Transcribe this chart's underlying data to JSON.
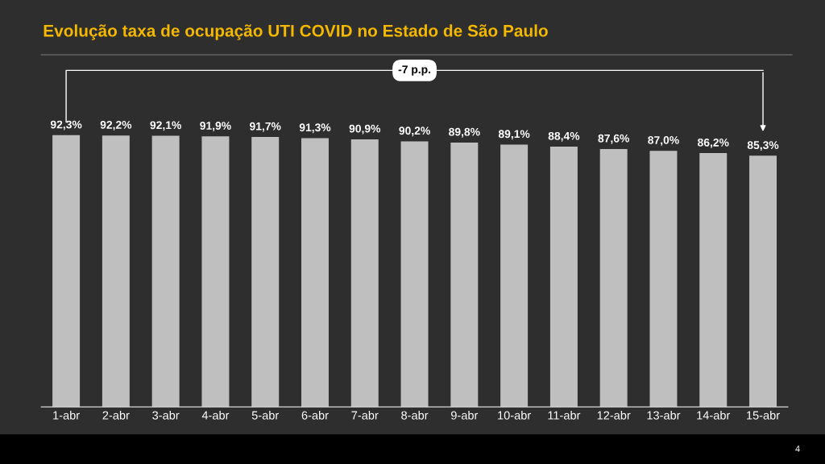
{
  "chart_data": {
    "type": "bar",
    "title": "Evolução taxa de ocupação UTI COVID no Estado de São Paulo",
    "categories": [
      "1-abr",
      "2-abr",
      "3-abr",
      "4-abr",
      "5-abr",
      "6-abr",
      "7-abr",
      "8-abr",
      "9-abr",
      "10-abr",
      "11-abr",
      "12-abr",
      "13-abr",
      "14-abr",
      "15-abr"
    ],
    "values": [
      92.3,
      92.2,
      92.1,
      91.9,
      91.7,
      91.3,
      90.9,
      90.2,
      89.8,
      89.1,
      88.4,
      87.6,
      87.0,
      86.2,
      85.3
    ],
    "value_labels": [
      "92,3%",
      "92,2%",
      "92,1%",
      "91,9%",
      "91,7%",
      "91,3%",
      "90,9%",
      "90,2%",
      "89,8%",
      "89,1%",
      "88,4%",
      "87,6%",
      "87,0%",
      "86,2%",
      "85,3%"
    ],
    "color": "#bfbfbf",
    "tick_labels": "x",
    "grid": false,
    "annotations": [
      "-7 p.p.",
      "4"
    ]
  }
}
